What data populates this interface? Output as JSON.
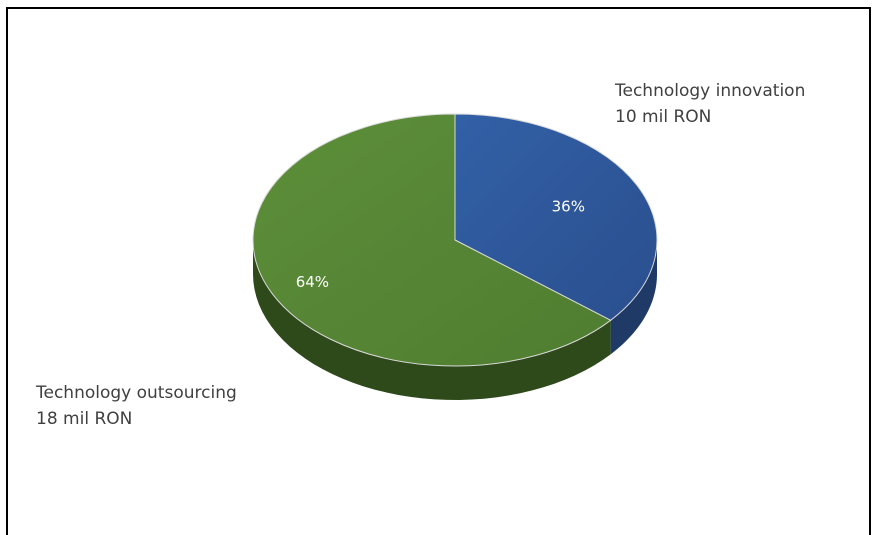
{
  "chart_data": {
    "type": "pie",
    "title": "",
    "slices": [
      {
        "name": "Technology innovation",
        "amount_label": "10 mil RON",
        "percent": 36,
        "percent_label": "36%",
        "color": "#2e5597"
      },
      {
        "name": "Technology outsourcing",
        "amount_label": "18 mil RON",
        "percent": 64,
        "percent_label": "64%",
        "color": "#558235"
      }
    ],
    "start_angle_deg": 0,
    "direction": "clockwise",
    "style": "3d",
    "legend": "none"
  }
}
